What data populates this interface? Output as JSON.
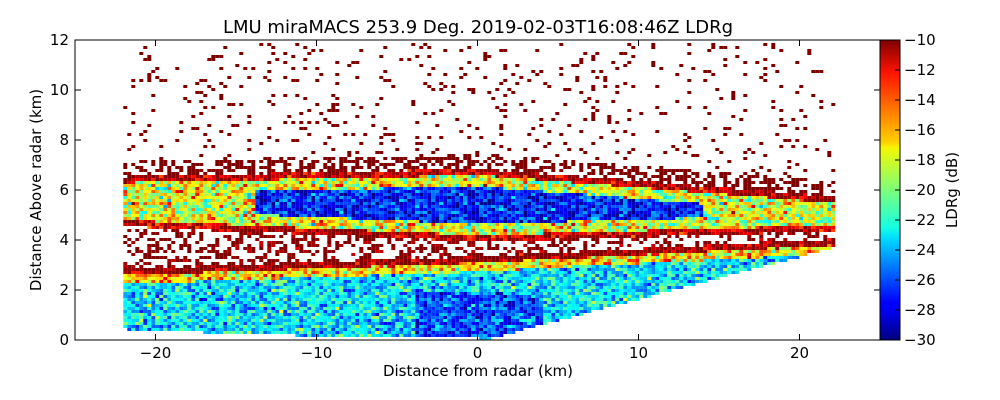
{
  "chart_data": {
    "type": "heatmap",
    "title": "LMU miraMACS 253.9 Deg. 2019-02-03T16:08:46Z  LDRg",
    "xlabel": "Distance from radar (km)",
    "ylabel": "Distance Above radar  (km)",
    "xlim": [
      -25,
      25
    ],
    "ylim": [
      0,
      12
    ],
    "x_ticks": [
      -20,
      -10,
      0,
      10,
      20
    ],
    "x_tick_labels": [
      "−20",
      "−10",
      "0",
      "10",
      "20"
    ],
    "y_ticks": [
      0,
      2,
      4,
      6,
      8,
      10,
      12
    ],
    "y_tick_labels": [
      "0",
      "2",
      "4",
      "6",
      "8",
      "10",
      "12"
    ],
    "colorbar": {
      "label": "LDRg (dB)",
      "range": [
        -30,
        -10
      ],
      "ticks": [
        -10,
        -12,
        -14,
        -16,
        -18,
        -20,
        -22,
        -24,
        -26,
        -28,
        -30
      ],
      "tick_labels": [
        "−10",
        "−12",
        "−14",
        "−16",
        "−18",
        "−20",
        "−22",
        "−24",
        "−26",
        "−28",
        "−30"
      ],
      "colormap": "jet"
    },
    "scan": {
      "azimuth_deg": 253.9,
      "x_extent_km": [
        -22,
        22
      ],
      "left_edge_base_km": 0.4,
      "right_edge_top_km": 3.9
    },
    "layers": [
      {
        "name": "lower-cloud",
        "top_left_km": 2.9,
        "top_center_km": 3.4,
        "top_right_km": 4.1,
        "base_km": 0.3,
        "typical_ldr_db": -23
      },
      {
        "name": "upper-cloud",
        "base_km": 4.2,
        "top_left_km": 6.6,
        "top_center_km": 6.9,
        "top_right_km": 5.8,
        "core_ldr_db": -27,
        "edge_ldr_db": -18
      },
      {
        "name": "melting-band-upper",
        "level_left_km": 4.4,
        "level_center_km": 3.8,
        "ldr_db": -10
      },
      {
        "name": "cloud-top-noise",
        "ldr_db": -10
      },
      {
        "name": "sparse-noise-above",
        "ldr_db": -10
      }
    ]
  }
}
